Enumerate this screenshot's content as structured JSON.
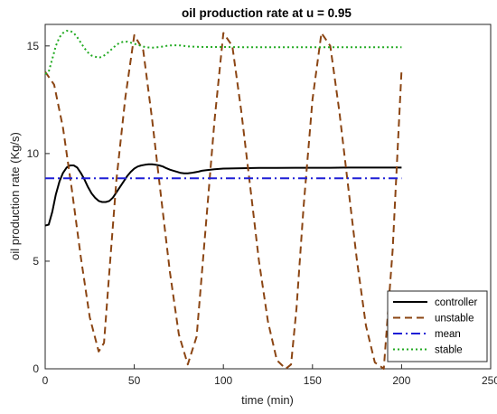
{
  "chart_data": {
    "type": "line",
    "title": "oil production rate at u = 0.95",
    "xlabel": "time (min)",
    "ylabel": "oil production rate (Kg/s)",
    "xlim": [
      0,
      250
    ],
    "ylim": [
      0,
      16
    ],
    "xticks": [
      "0",
      "50",
      "100",
      "150",
      "200",
      "250"
    ],
    "yticks": [
      "0",
      "5",
      "10",
      "15"
    ],
    "grid": false,
    "legend_position": "bottom-right",
    "series": [
      {
        "name": "controller",
        "color": "#000000",
        "style": "solid",
        "x": [
          0,
          2,
          4,
          6,
          8,
          10,
          12,
          14,
          16,
          18,
          20,
          22,
          24,
          26,
          28,
          30,
          32,
          34,
          36,
          38,
          40,
          42,
          44,
          46,
          48,
          50,
          52,
          54,
          56,
          58,
          60,
          62,
          64,
          66,
          68,
          70,
          72,
          74,
          76,
          78,
          80,
          82,
          84,
          86,
          88,
          90,
          95,
          100,
          110,
          120,
          130,
          140,
          150,
          160,
          170,
          180,
          190,
          200
        ],
        "values": [
          6.65,
          6.7,
          7.3,
          8.1,
          8.7,
          9.1,
          9.35,
          9.45,
          9.45,
          9.35,
          9.1,
          8.8,
          8.45,
          8.15,
          7.95,
          7.8,
          7.75,
          7.75,
          7.8,
          7.95,
          8.2,
          8.45,
          8.7,
          8.95,
          9.15,
          9.3,
          9.4,
          9.45,
          9.48,
          9.5,
          9.5,
          9.48,
          9.45,
          9.4,
          9.32,
          9.25,
          9.2,
          9.15,
          9.1,
          9.08,
          9.08,
          9.1,
          9.13,
          9.16,
          9.2,
          9.22,
          9.27,
          9.3,
          9.32,
          9.33,
          9.33,
          9.34,
          9.34,
          9.34,
          9.35,
          9.35,
          9.35,
          9.35
        ]
      },
      {
        "name": "unstable",
        "color": "#8B4513",
        "style": "dashed",
        "x": [
          0,
          5,
          10,
          15,
          20,
          25,
          30,
          33,
          36,
          40,
          45,
          50,
          55,
          60,
          65,
          70,
          75,
          80,
          85,
          90,
          95,
          100,
          105,
          110,
          115,
          120,
          125,
          130,
          135,
          138,
          141,
          145,
          150,
          155,
          160,
          165,
          170,
          175,
          180,
          185,
          190,
          195,
          200
        ],
        "values": [
          13.8,
          13.2,
          11.2,
          8.3,
          5.2,
          2.4,
          0.8,
          1.2,
          4.5,
          8.8,
          12.6,
          15.5,
          14.8,
          11.6,
          8.0,
          4.5,
          1.6,
          0.2,
          1.5,
          6.5,
          11.5,
          15.6,
          15.0,
          12.0,
          8.5,
          5.0,
          2.2,
          0.4,
          0.0,
          0.2,
          2.8,
          7.5,
          12.5,
          15.6,
          15.0,
          12.0,
          8.5,
          5.0,
          2.0,
          0.3,
          0.0,
          5.5,
          13.9
        ]
      },
      {
        "name": "mean",
        "color": "#1E1ED6",
        "style": "dashdot",
        "x": [
          0,
          200
        ],
        "values": [
          8.85,
          8.85
        ]
      },
      {
        "name": "stable",
        "color": "#22AA22",
        "style": "dotted",
        "x": [
          0,
          2,
          4,
          6,
          8,
          10,
          12,
          14,
          16,
          18,
          20,
          22,
          24,
          26,
          28,
          30,
          32,
          34,
          36,
          38,
          40,
          42,
          44,
          46,
          48,
          50,
          52,
          54,
          56,
          58,
          60,
          62,
          64,
          66,
          68,
          70,
          72,
          74,
          76,
          78,
          80,
          85,
          90,
          95,
          100,
          110,
          120,
          130,
          140,
          150,
          160,
          170,
          180,
          190,
          200
        ],
        "values": [
          13.7,
          13.8,
          14.4,
          15.0,
          15.4,
          15.6,
          15.7,
          15.7,
          15.6,
          15.4,
          15.15,
          14.9,
          14.7,
          14.55,
          14.5,
          14.45,
          14.5,
          14.6,
          14.75,
          14.9,
          15.05,
          15.15,
          15.2,
          15.2,
          15.15,
          15.1,
          15.05,
          15.0,
          14.95,
          14.93,
          14.92,
          14.93,
          14.95,
          14.97,
          15.0,
          15.02,
          15.03,
          15.03,
          15.02,
          15.0,
          14.98,
          14.96,
          14.95,
          14.95,
          14.95,
          14.94,
          14.94,
          14.94,
          14.94,
          14.94,
          14.94,
          14.94,
          14.94,
          14.94,
          14.94
        ]
      }
    ]
  }
}
